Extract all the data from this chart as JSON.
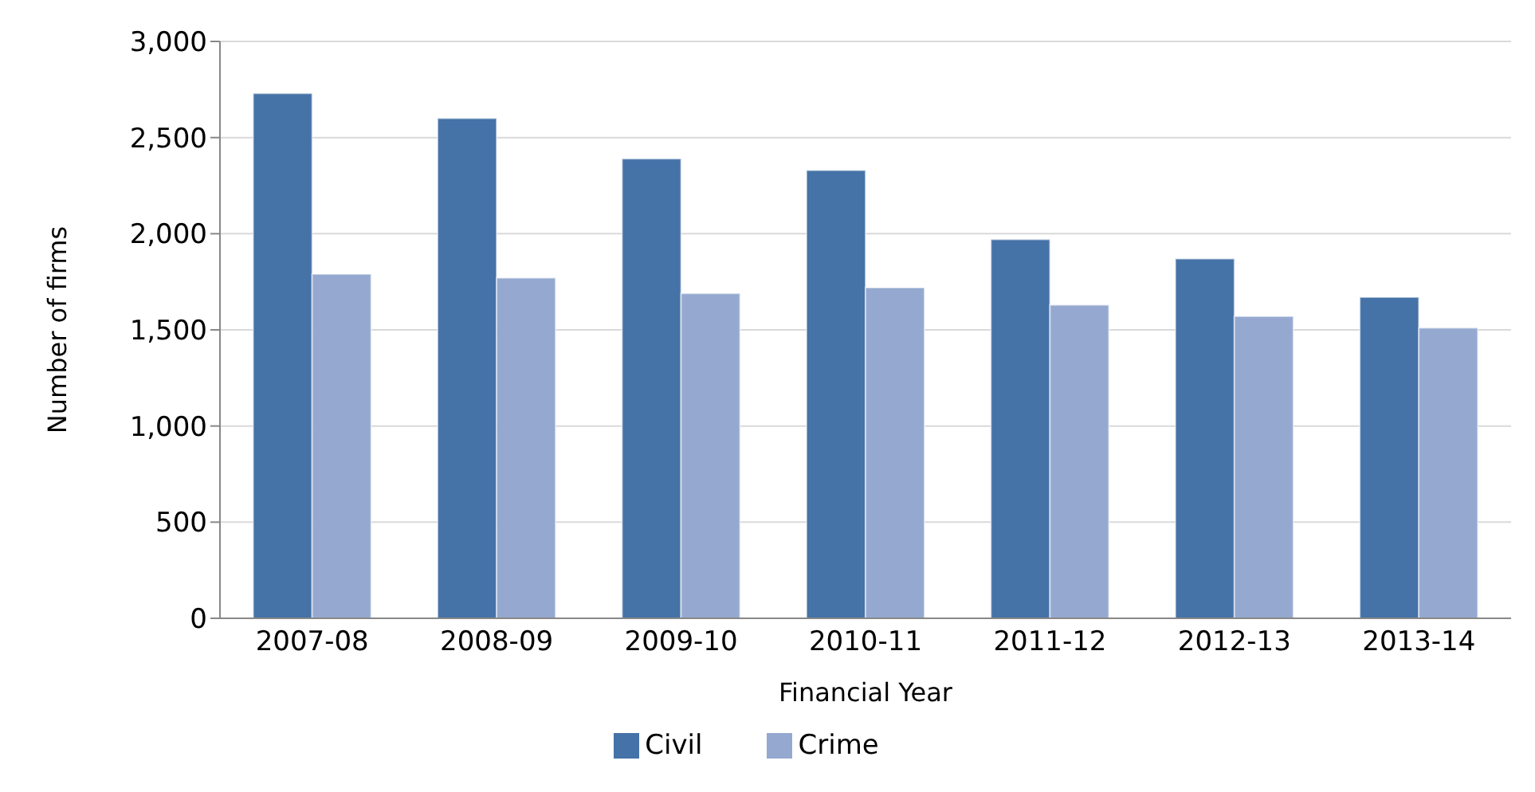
{
  "chart_data": {
    "type": "bar",
    "xlabel": "Financial Year",
    "ylabel": "Number of firms",
    "categories": [
      "2007-08",
      "2008-09",
      "2009-10",
      "2010-11",
      "2011-12",
      "2012-13",
      "2013-14"
    ],
    "series": [
      {
        "name": "Civil",
        "color": "#4572a7",
        "values": [
          2730,
          2600,
          2390,
          2330,
          1970,
          1870,
          1670
        ]
      },
      {
        "name": "Crime",
        "color": "#95a9d0",
        "values": [
          1790,
          1770,
          1690,
          1720,
          1630,
          1570,
          1510
        ]
      }
    ],
    "ylim": [
      0,
      3000
    ],
    "yticks": [
      {
        "value": 0,
        "label": "0"
      },
      {
        "value": 500,
        "label": "500"
      },
      {
        "value": 1000,
        "label": "1,000"
      },
      {
        "value": 1500,
        "label": "1,500"
      },
      {
        "value": 2000,
        "label": "2,000"
      },
      {
        "value": 2500,
        "label": "2,500"
      },
      {
        "value": 3000,
        "label": "3,000"
      }
    ],
    "grid": "y",
    "legend": "bottom"
  }
}
